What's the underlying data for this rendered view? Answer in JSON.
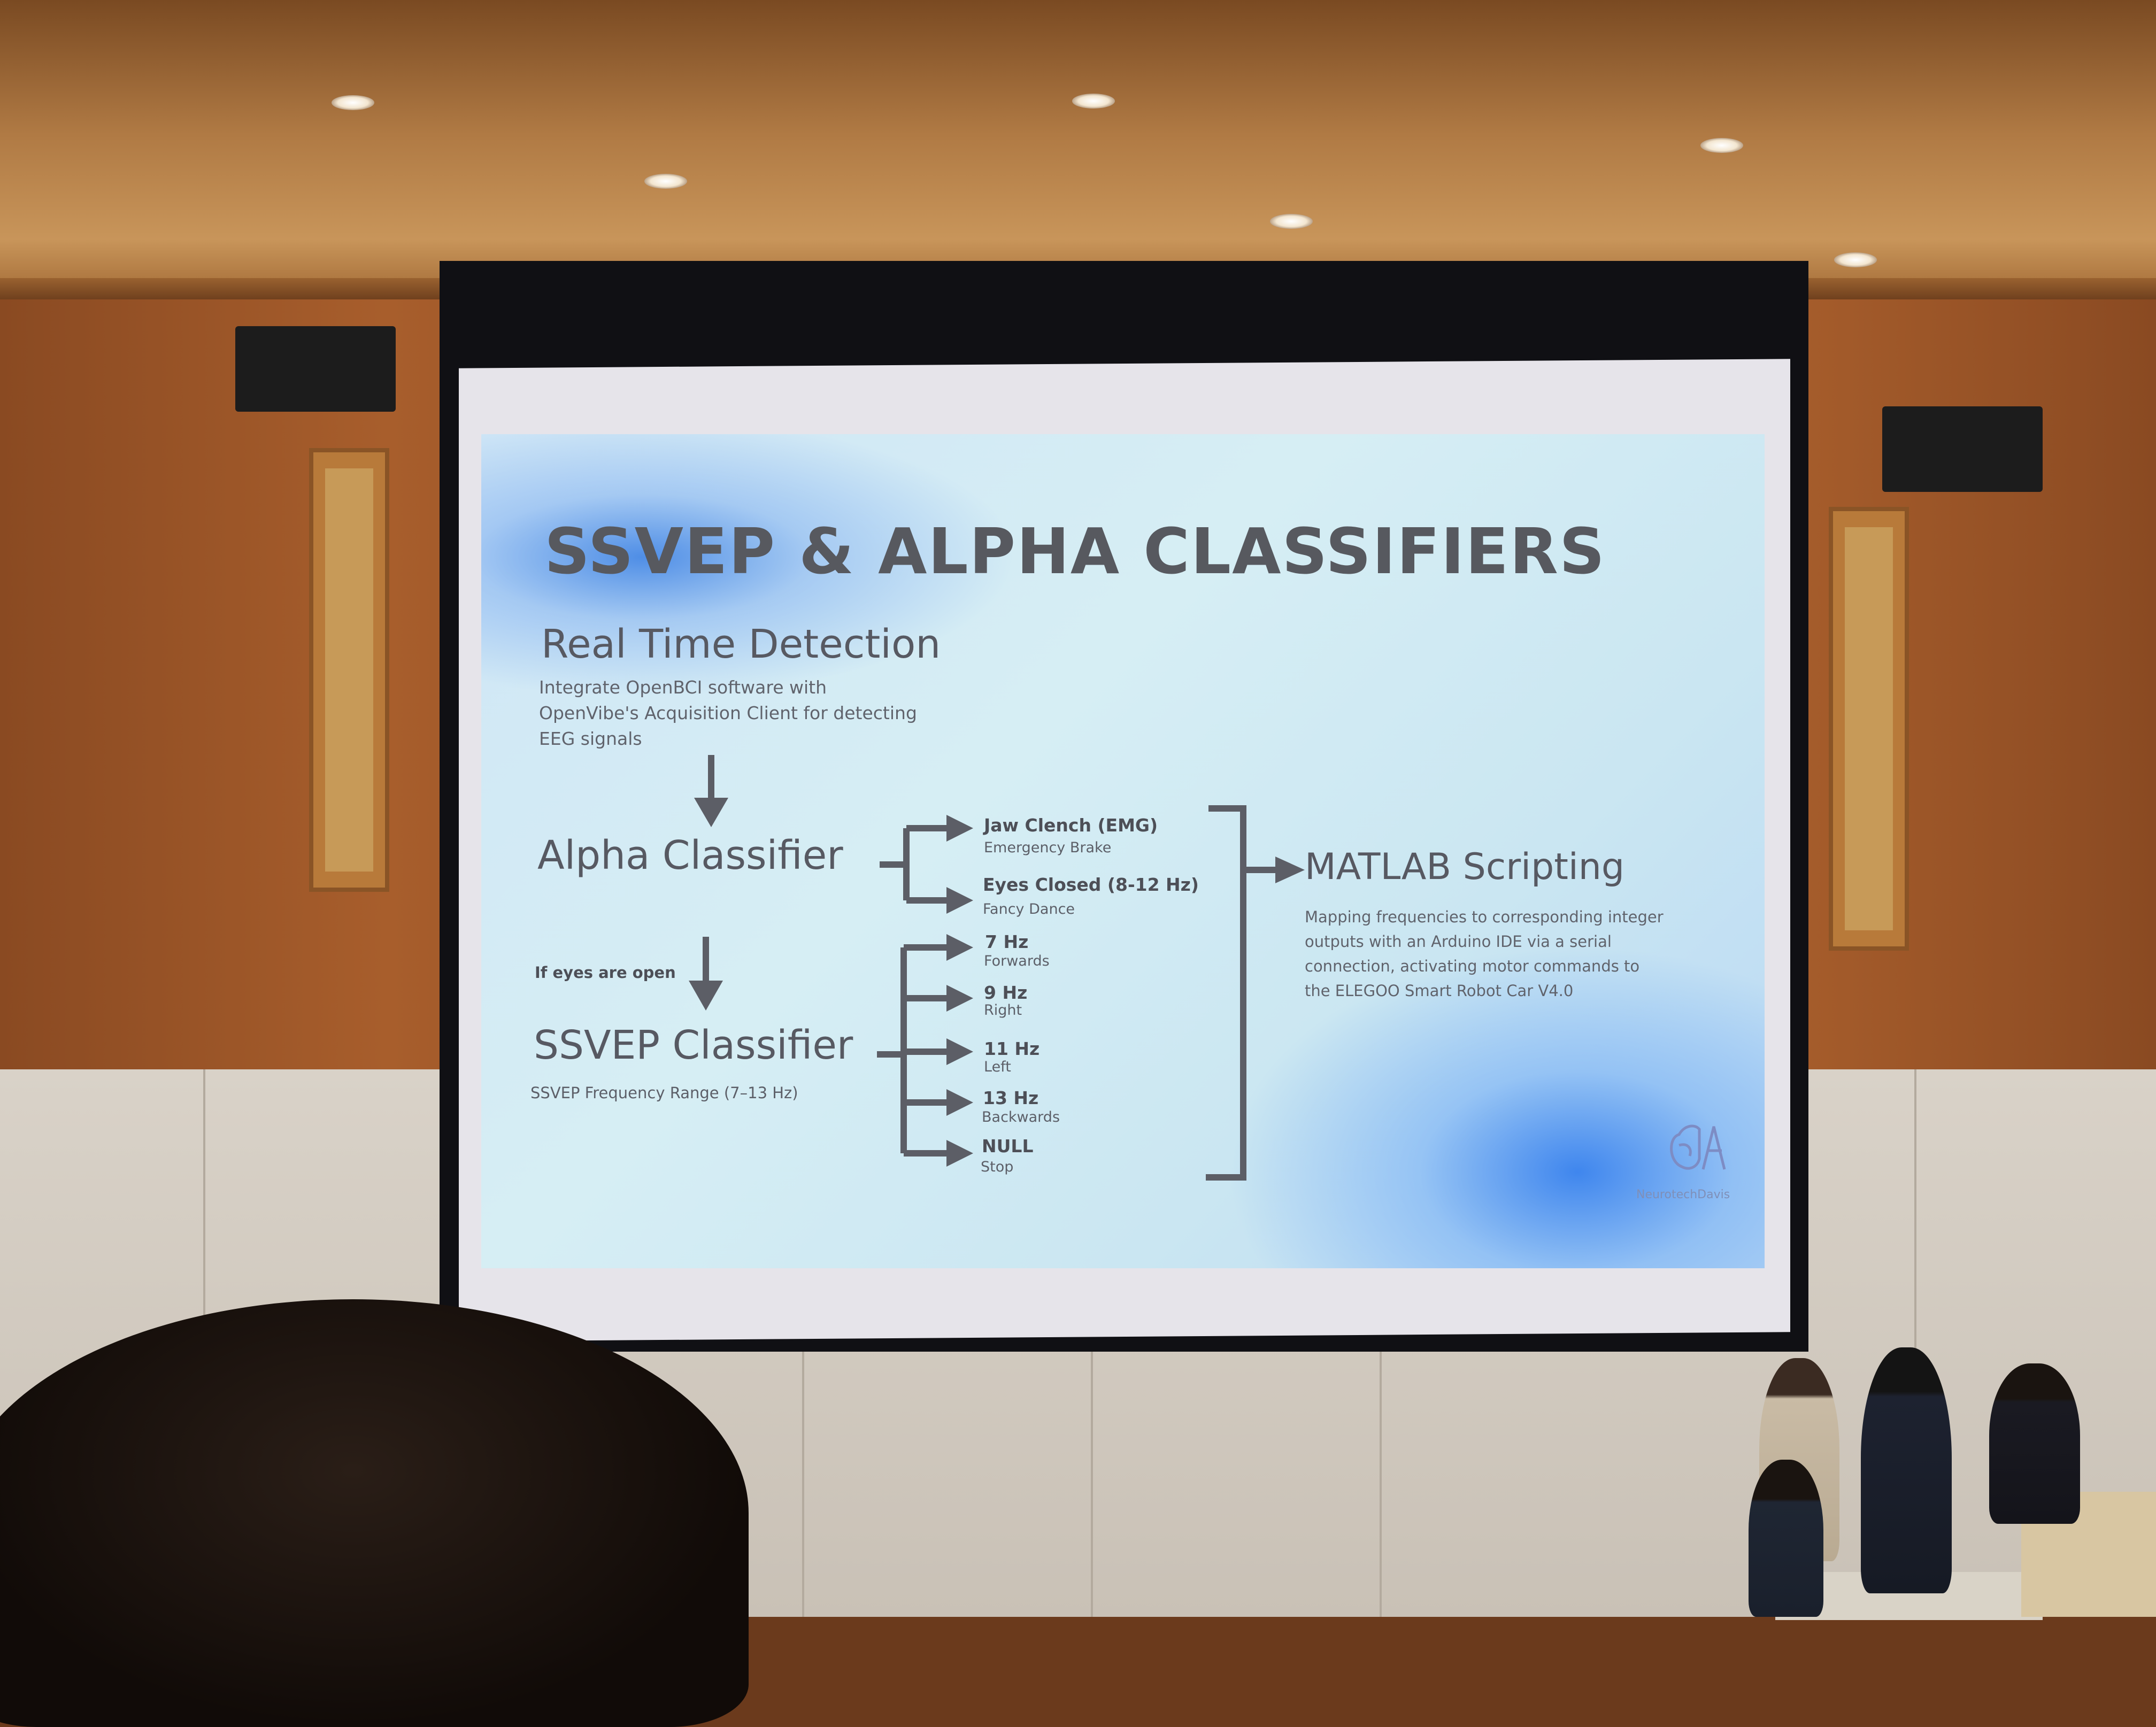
{
  "slide": {
    "title": "SSVEP & ALPHA CLASSIFIERS",
    "real_time": {
      "heading": "Real Time Detection",
      "lines": [
        "Integrate OpenBCI software with",
        "OpenVibe's Acquisition Client for detecting",
        "EEG signals"
      ]
    },
    "alpha": {
      "heading": "Alpha Classifier",
      "outputs": [
        {
          "label": "Jaw Clench (EMG)",
          "action": "Emergency Brake"
        },
        {
          "label": "Eyes Closed (8-12 Hz)",
          "action": "Fancy Dance"
        }
      ]
    },
    "condition": "If eyes are open",
    "ssvep": {
      "heading": "SSVEP Classifier",
      "range": "SSVEP Frequency Range (7–13 Hz)",
      "outputs": [
        {
          "label": "7 Hz",
          "action": "Forwards"
        },
        {
          "label": "9 Hz",
          "action": "Right"
        },
        {
          "label": "11 Hz",
          "action": "Left"
        },
        {
          "label": "13 Hz",
          "action": "Backwards"
        },
        {
          "label": "NULL",
          "action": "Stop"
        }
      ]
    },
    "matlab": {
      "heading": "MATLAB Scripting",
      "lines": [
        "Mapping frequencies to corresponding integer",
        "outputs with an Arduino IDE via a serial",
        "connection, activating motor commands to",
        "the ELEGOO Smart Robot Car V4.0"
      ]
    },
    "logo_text": "NeurotechDavis"
  },
  "colors": {
    "slide_bg": "#d3ebf4",
    "slide_accent_blue": "#3f86ee",
    "slide_text": "#575962",
    "wall_wood": "#a85e2c"
  }
}
